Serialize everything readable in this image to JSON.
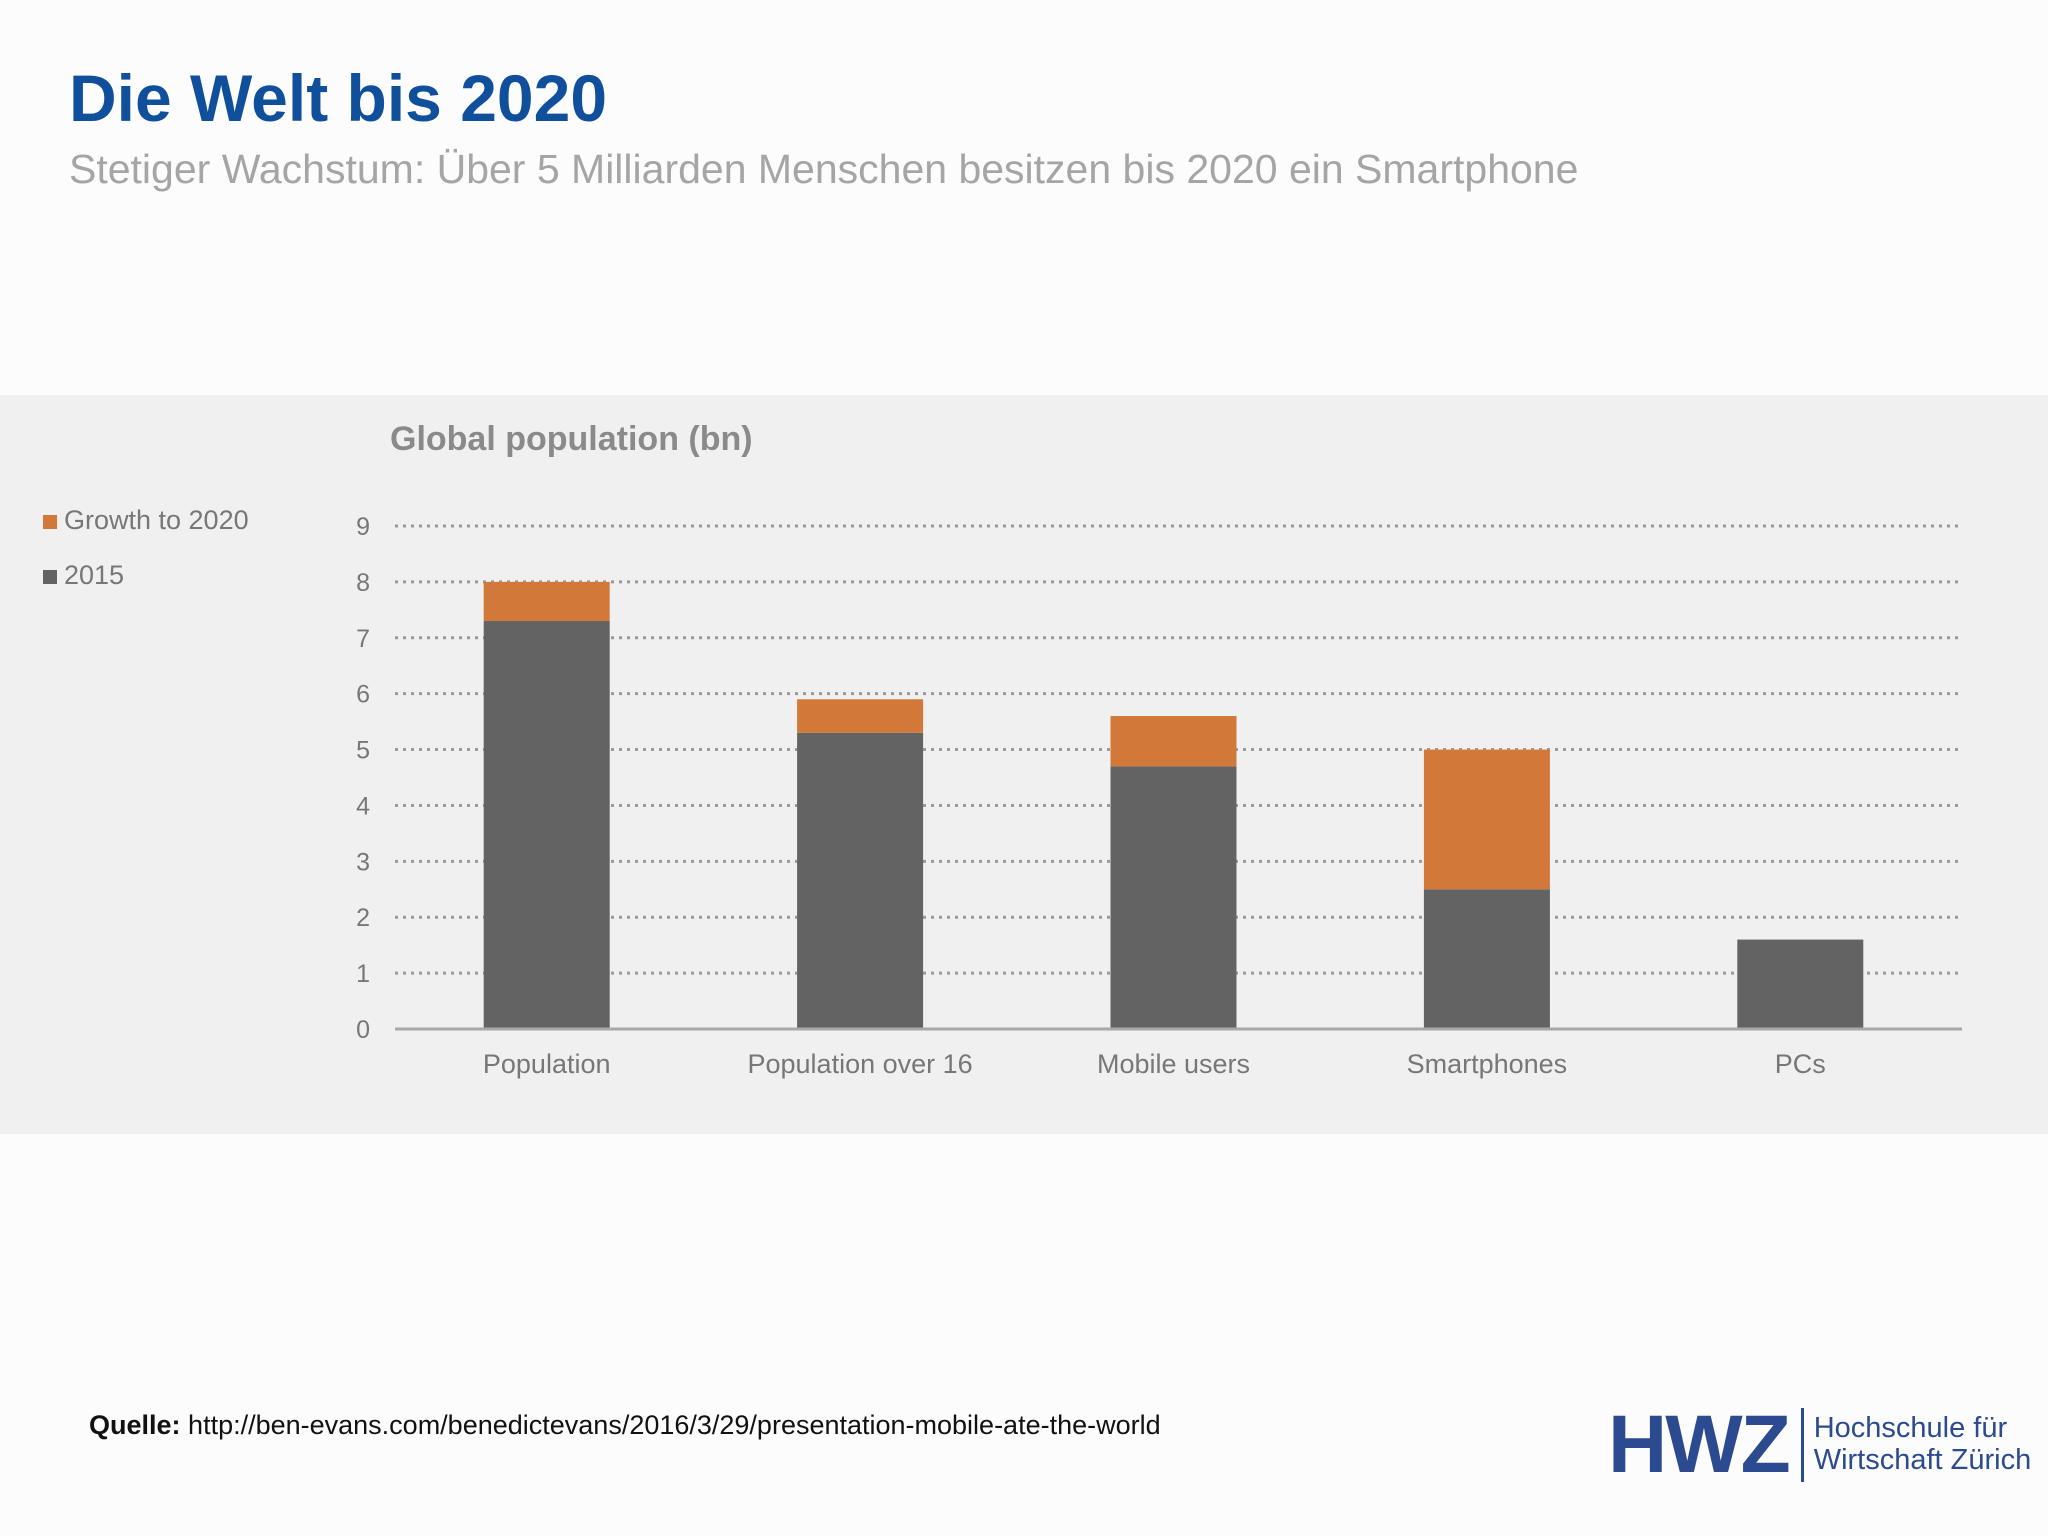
{
  "slide": {
    "title": "Die Welt bis 2020",
    "subtitle": "Stetiger Wachstum: Über 5 Milliarden Menschen besitzen bis 2020 ein Smartphone"
  },
  "source": {
    "label": "Quelle:",
    "url": "http://ben-evans.com/benedictevans/2016/3/29/presentation-mobile-ate-the-world"
  },
  "logo": {
    "mark": "HWZ",
    "line1": "Hochschule für",
    "line2": "Wirtschaft Zürich"
  },
  "chart_data": {
    "type": "bar",
    "stacked": true,
    "title": "Global population (bn)",
    "xlabel": "",
    "ylabel": "",
    "categories": [
      "Population",
      "Population over 16",
      "Mobile users",
      "Smartphones",
      "PCs"
    ],
    "series": [
      {
        "name": "2015",
        "values": [
          7.3,
          5.3,
          4.7,
          2.5,
          1.6
        ],
        "color": "#636363"
      },
      {
        "name": "Growth to 2020",
        "values": [
          0.7,
          0.6,
          0.9,
          2.5,
          0
        ],
        "color": "#d2793a"
      }
    ],
    "ylim": [
      0,
      9
    ],
    "yticks": [
      0,
      1,
      2,
      3,
      4,
      5,
      6,
      7,
      8,
      9
    ],
    "grid": true,
    "legend": "top-left"
  },
  "colors": {
    "title": "#0f4f9b",
    "subtitle": "#a5a5a5",
    "panel": "#f0f0f0",
    "axis_text": "#777777",
    "logo": "#2b4a8f"
  }
}
